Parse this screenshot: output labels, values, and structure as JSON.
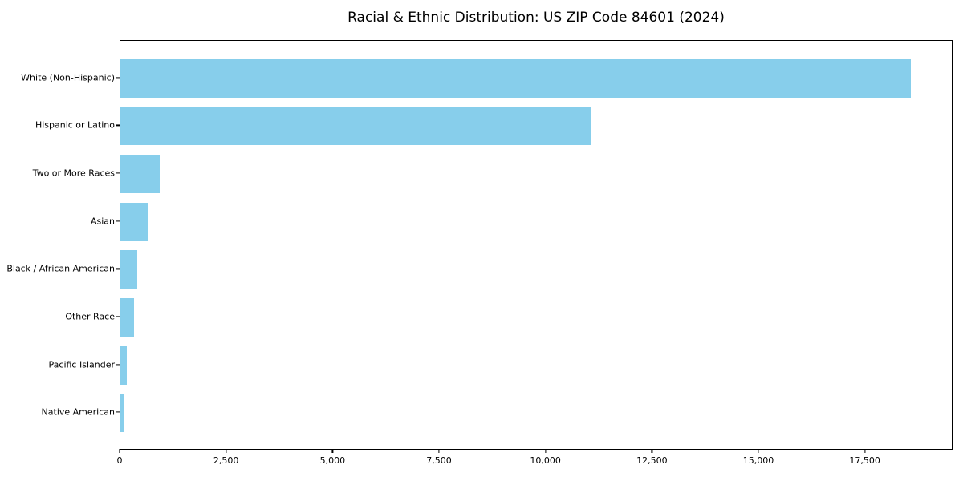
{
  "chart_data": {
    "type": "bar",
    "orientation": "horizontal",
    "title": "Racial & Ethnic Distribution: US ZIP Code 84601 (2024)",
    "categories": [
      "White (Non-Hispanic)",
      "Hispanic or Latino",
      "Two or More Races",
      "Asian",
      "Black / African American",
      "Other Race",
      "Pacific Islander",
      "Native American"
    ],
    "values": [
      18600,
      11080,
      925,
      660,
      395,
      315,
      150,
      80
    ],
    "xlabel": "",
    "ylabel": "",
    "xlim": [
      0,
      19560
    ],
    "x_tick_values": [
      0,
      2500,
      5000,
      7500,
      10000,
      12500,
      15000,
      17500
    ],
    "x_tick_labels": [
      "0",
      "2,500",
      "5,000",
      "7,500",
      "10,000",
      "12,500",
      "15,000",
      "17,500"
    ],
    "bar_color": "#87CEEB",
    "spine_color": "#000000",
    "text_color": "#000000",
    "grid": "off",
    "legend": "none",
    "background": "#ffffff"
  }
}
